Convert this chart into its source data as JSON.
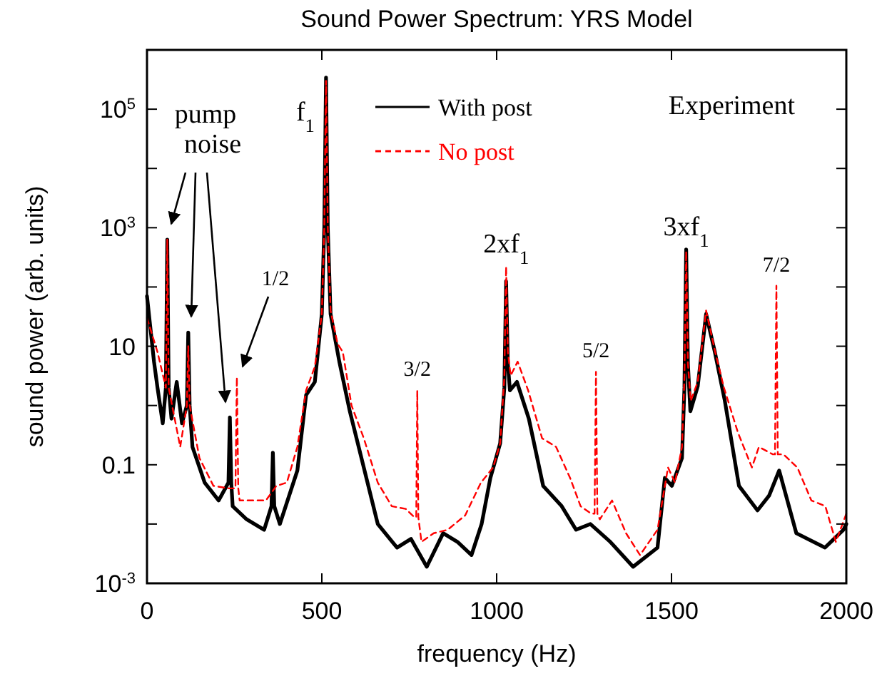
{
  "chart_data": {
    "type": "line",
    "title": "Sound Power Spectrum: YRS Model",
    "xlabel": "frequency (Hz)",
    "ylabel": "sound power (arb. units)",
    "xlim": [
      0,
      2000
    ],
    "xticks": [
      0,
      500,
      1000,
      1500,
      2000
    ],
    "ylim": [
      0.001,
      1000000
    ],
    "log": "y",
    "yticks": [
      {
        "value": 0.001,
        "label": "10$^{-3}$"
      },
      {
        "value": 0.01,
        "label": null
      },
      {
        "value": 0.1,
        "label": "0.1"
      },
      {
        "value": 1,
        "label": null
      },
      {
        "value": 10,
        "label": "10"
      },
      {
        "value": 100,
        "label": null
      },
      {
        "value": 1000,
        "label": "10$^{3}$"
      },
      {
        "value": 10000,
        "label": null
      },
      {
        "value": 100000,
        "label": "10$^{5}$"
      }
    ],
    "grid": false,
    "legend": "top",
    "series": [
      {
        "name": "With post",
        "color": "#000000",
        "line_style": "solid",
        "x": [
          0,
          20,
          30,
          45,
          54,
          58,
          62,
          70,
          85,
          100,
          114,
          118,
          122,
          130,
          165,
          205,
          233,
          237,
          241,
          245,
          285,
          335,
          356,
          360,
          364,
          380,
          430,
          455,
          480,
          500,
          507,
          512,
          517,
          525,
          550,
          580,
          620,
          660,
          715,
          755,
          800,
          847,
          888,
          928,
          957,
          982,
          1010,
          1022,
          1027,
          1032,
          1038,
          1058,
          1092,
          1133,
          1186,
          1227,
          1268,
          1325,
          1390,
          1460,
          1481,
          1501,
          1530,
          1537,
          1542,
          1547,
          1554,
          1575,
          1599,
          1624,
          1652,
          1693,
          1746,
          1779,
          1808,
          1857,
          1939,
          1992,
          2000
        ],
        "values": [
          70,
          5.5,
          2,
          0.5,
          2,
          630,
          2,
          0.6,
          2.5,
          0.5,
          1,
          17,
          1,
          0.2,
          0.05,
          0.025,
          0.05,
          0.63,
          0.05,
          0.02,
          0.012,
          0.008,
          0.02,
          0.16,
          0.02,
          0.01,
          0.08,
          1.5,
          2.5,
          35,
          1000,
          340000,
          1000,
          35,
          5.5,
          0.8,
          0.09,
          0.01,
          0.004,
          0.0056,
          0.0019,
          0.007,
          0.005,
          0.003,
          0.01,
          0.06,
          0.23,
          2,
          125,
          5,
          1.8,
          2.5,
          0.6,
          0.044,
          0.02,
          0.008,
          0.01,
          0.005,
          0.0019,
          0.004,
          0.06,
          0.044,
          0.13,
          2,
          430,
          5,
          0.8,
          2.1,
          35,
          8,
          1.25,
          0.044,
          0.017,
          0.03,
          0.08,
          0.007,
          0.004,
          0.008,
          0.01
        ]
      },
      {
        "name": "No post",
        "color": "#ff0000",
        "line_style": "dashed",
        "x": [
          0,
          30,
          54,
          58,
          62,
          75,
          95,
          114,
          118,
          122,
          150,
          190,
          235,
          253,
          257,
          261,
          265,
          300,
          340,
          370,
          400,
          430,
          455,
          480,
          500,
          507,
          512,
          517,
          525,
          545,
          560,
          585,
          620,
          660,
          700,
          740,
          765,
          770,
          773,
          776,
          785,
          820,
          860,
          910,
          955,
          990,
          1010,
          1022,
          1027,
          1032,
          1040,
          1060,
          1090,
          1130,
          1170,
          1210,
          1240,
          1270,
          1280,
          1284,
          1288,
          1295,
          1330,
          1370,
          1410,
          1460,
          1490,
          1510,
          1530,
          1537,
          1542,
          1547,
          1555,
          1575,
          1599,
          1625,
          1650,
          1690,
          1730,
          1750,
          1790,
          1796,
          1800,
          1804,
          1820,
          1860,
          1900,
          1940,
          1970,
          2000
        ],
        "values": [
          30,
          8,
          2,
          630,
          2,
          0.8,
          0.2,
          1,
          10,
          1,
          0.13,
          0.044,
          0.04,
          0.04,
          3,
          0.04,
          0.025,
          0.025,
          0.025,
          0.044,
          0.05,
          0.2,
          1.8,
          4.5,
          35,
          1000,
          300000,
          1000,
          40,
          11,
          8,
          1,
          0.28,
          0.05,
          0.02,
          0.018,
          0.013,
          0.013,
          1.8,
          0.013,
          0.005,
          0.007,
          0.008,
          0.014,
          0.05,
          0.09,
          0.23,
          3,
          220,
          8,
          3.2,
          5.5,
          1.8,
          0.28,
          0.2,
          0.06,
          0.02,
          0.015,
          0.015,
          3.7,
          0.015,
          0.012,
          0.025,
          0.007,
          0.003,
          0.008,
          0.09,
          0.05,
          0.2,
          3,
          400,
          5,
          1.2,
          2.5,
          40,
          8,
          2,
          0.35,
          0.09,
          0.2,
          0.15,
          0.15,
          105,
          0.15,
          0.15,
          0.09,
          0.025,
          0.02,
          0.005,
          0.015
        ]
      }
    ],
    "annotations": [
      "pump noise",
      "1/2",
      "Experiment",
      {
        "text": "f$_{1}$",
        "x": 512,
        "y": 340000
      },
      {
        "text": "3/2",
        "x": 773,
        "y": 1.8
      },
      {
        "text": "2xf$_{1}$",
        "x": 1027,
        "y": 220
      },
      {
        "text": "5/2",
        "x": 1284,
        "y": 3.7
      },
      {
        "text": "3xf$_{1}$",
        "x": 1542,
        "y": 430
      },
      {
        "text": "7/2",
        "x": 1800,
        "y": 105
      }
    ]
  }
}
